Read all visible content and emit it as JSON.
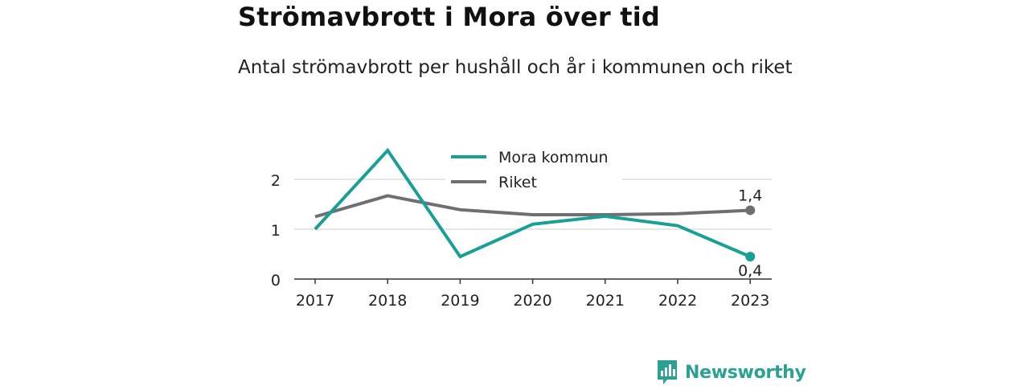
{
  "header": {
    "title": "Strömavbrott i Mora över tid",
    "subtitle": "Antal strömavbrott per hushåll och år i kommunen och riket"
  },
  "brand": {
    "name": "Newsworthy",
    "color": "#2aa193"
  },
  "chart_data": {
    "type": "line",
    "x": [
      "2017",
      "2018",
      "2019",
      "2020",
      "2021",
      "2022",
      "2023"
    ],
    "yticks": [
      "0",
      "1",
      "2"
    ],
    "ylim": [
      0,
      2.6
    ],
    "grid": true,
    "legend_position": "top-center",
    "series": [
      {
        "name": "Mora kommun",
        "color": "#18a096",
        "values": [
          1.0,
          2.58,
          0.45,
          1.1,
          1.26,
          1.07,
          0.45
        ],
        "end_label": "0,4"
      },
      {
        "name": "Riket",
        "color": "#6f6e73",
        "values": [
          1.25,
          1.67,
          1.39,
          1.29,
          1.29,
          1.31,
          1.38
        ],
        "end_label": "1,4"
      }
    ]
  }
}
